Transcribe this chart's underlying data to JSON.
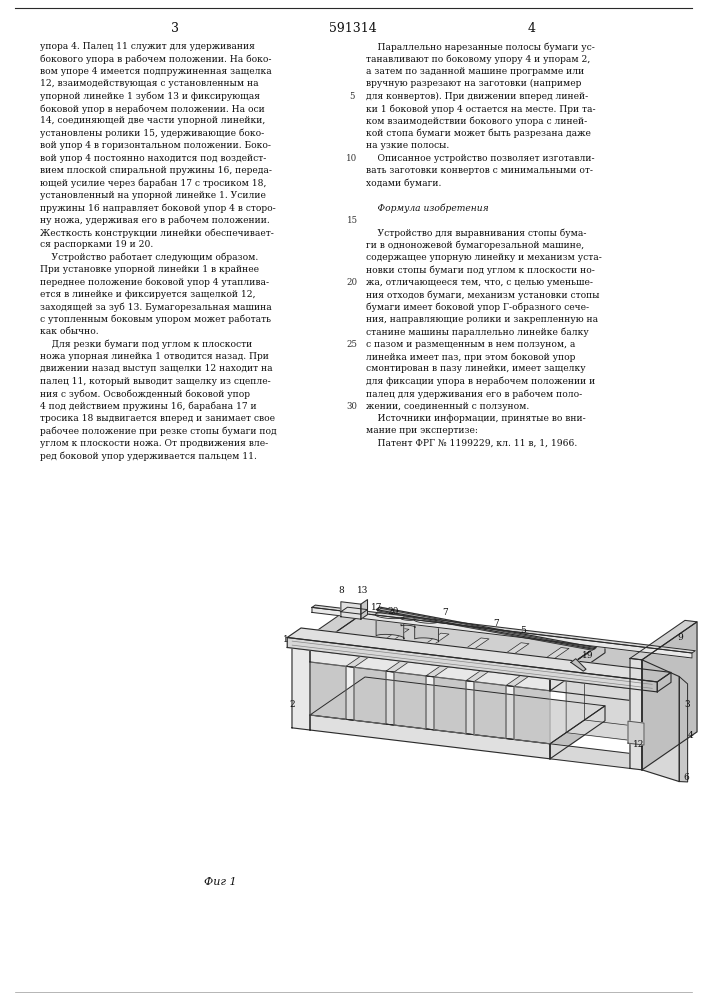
{
  "page_color": "#ffffff",
  "patent_number": "591314",
  "page_numbers": [
    "3",
    "4"
  ],
  "col1_text": [
    "упора 4. Палец 11 служит для удерживания",
    "бокового упора в рабочем положении. На боко-",
    "вом упоре 4 имеется подпружиненная защелка",
    "12, взаимодействующая с установленным на",
    "упорной линейке 1 зубом 13 и фиксирующая",
    "боковой упор в нерабочем положении. На оси",
    "14, соединяющей две части упорной линейки,",
    "установлены ролики 15, удерживающие боко-",
    "вой упор 4 в горизонтальном положении. Боко-",
    "вой упор 4 постоянно находится под воздейст-",
    "вием плоской спиральной пружины 16, переда-",
    "ющей усилие через барабан 17 с тросиком 18,",
    "установленный на упорной линейке 1. Усилие",
    "пружины 16 направляет боковой упор 4 в сторо-",
    "ну ножа, удерживая его в рабочем положении.",
    "Жесткость конструкции линейки обеспечивает-",
    "ся распорками 19 и 20.",
    "    Устройство работает следующим образом.",
    "При установке упорной линейки 1 в крайнее",
    "переднее положение боковой упор 4 утаплива-",
    "ется в линейке и фиксируется защелкой 12,",
    "заходящей за зуб 13. Бумагорезальная машина",
    "с утопленным боковым упором может работать",
    "как обычно.",
    "    Для резки бумаги под углом к плоскости",
    "ножа упорная линейка 1 отводится назад. При",
    "движении назад выступ защелки 12 находит на",
    "палец 11, который выводит защелку из сцепле-",
    "ния с зубом. Освобожденный боковой упор",
    "4 под действием пружины 16, барабана 17 и",
    "тросика 18 выдвигается вперед и занимает свое",
    "рабочее положение при резке стопы бумаги под",
    "углом к плоскости ножа. От продвижения вле-",
    "ред боковой упор удерживается пальцем 11."
  ],
  "col2_text": [
    "    Параллельно нарезанные полосы бумаги ус-",
    "танавливают по боковому упору 4 и упорам 2,",
    "а затем по заданной машине программе или",
    "вручную разрезают на заготовки (например",
    "для конвертов). При движении вперед линей-",
    "ки 1 боковой упор 4 остается на месте. При та-",
    "ком взаимодействии бокового упора с линей-",
    "кой стопа бумаги может быть разрезана даже",
    "на узкие полосы.",
    "    Описанное устройство позволяет изготавли-",
    "вать заготовки конвертов с минимальными от-",
    "ходами бумаги.",
    "",
    "    Формула изобретения",
    "",
    "    Устройство для выравнивания стопы бума-",
    "ги в одноножевой бумагорезальной машине,",
    "содержащее упорную линейку и механизм уста-",
    "новки стопы бумаги под углом к плоскости но-",
    "жа, отличающееся тем, что, с целью уменьше-",
    "ния отходов бумаги, механизм установки стопы",
    "бумаги имеет боковой упор Г-образного сече-",
    "ния, направляющие ролики и закрепленную на",
    "станине машины параллельно линейке балку",
    "с пазом и размещенным в нем ползуном, а",
    "линейка имеет паз, при этом боковой упор",
    "смонтирован в пазу линейки, имеет защелку",
    "для фиксации упора в нерабочем положении и",
    "палец для удерживания его в рабочем поло-",
    "жении, соединенный с ползуном.",
    "    Источники информации, принятые во вни-",
    "мание при экспертизе:",
    "    Патент ФРГ № 1199229, кл. 11 в, 1, 1966."
  ],
  "line_numbers": [
    5,
    10,
    15,
    20,
    25,
    30
  ],
  "figure_caption": "Фиг 1"
}
